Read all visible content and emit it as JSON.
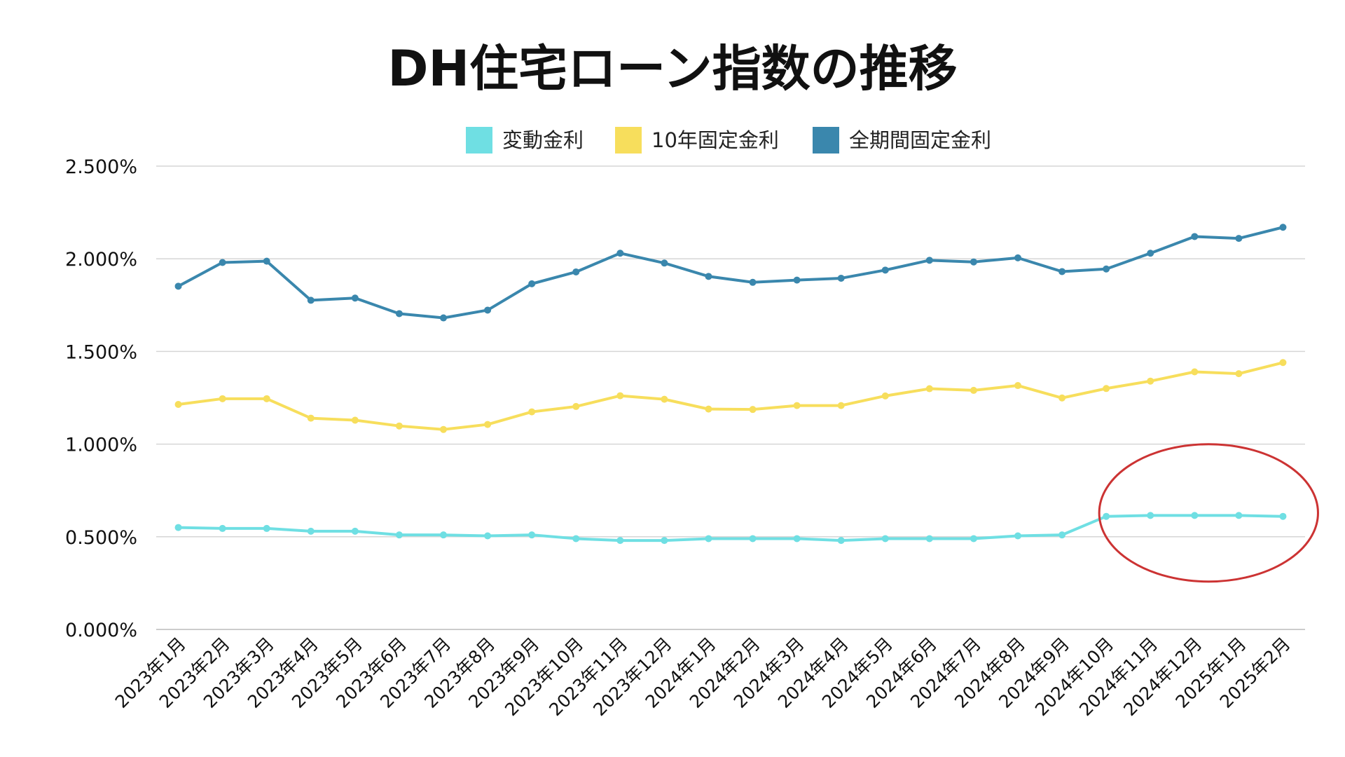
{
  "chart_data": {
    "type": "line",
    "title": "DH住宅ローン指数の推移",
    "xlabel": "",
    "ylabel": "",
    "ylim": [
      0,
      2.5
    ],
    "y_ticks": [
      "0.000%",
      "0.500%",
      "1.000%",
      "1.500%",
      "2.000%",
      "2.500%"
    ],
    "grid": true,
    "legend_position": "top",
    "categories": [
      "2023年1月",
      "2023年2月",
      "2023年3月",
      "2023年4月",
      "2023年5月",
      "2023年6月",
      "2023年7月",
      "2023年8月",
      "2023年9月",
      "2023年10月",
      "2023年11月",
      "2023年12月",
      "2024年1月",
      "2024年2月",
      "2024年3月",
      "2024年4月",
      "2024年5月",
      "2024年6月",
      "2024年7月",
      "2024年8月",
      "2024年9月",
      "2024年10月",
      "2024年11月",
      "2024年12月",
      "2025年1月",
      "2025年2月"
    ],
    "series": [
      {
        "name": "変動金利",
        "color": "#6fdfe3",
        "values": [
          0.55,
          0.545,
          0.545,
          0.53,
          0.53,
          0.51,
          0.51,
          0.505,
          0.51,
          0.49,
          0.48,
          0.48,
          0.49,
          0.49,
          0.49,
          0.48,
          0.49,
          0.49,
          0.49,
          0.505,
          0.51,
          0.61,
          0.615,
          0.615,
          0.615,
          0.61
        ]
      },
      {
        "name": "10年固定金利",
        "color": "#f7de5c",
        "values": [
          1.214,
          1.245,
          1.245,
          1.14,
          1.129,
          1.098,
          1.079,
          1.106,
          1.174,
          1.203,
          1.261,
          1.242,
          1.189,
          1.187,
          1.208,
          1.208,
          1.26,
          1.299,
          1.29,
          1.316,
          1.249,
          1.3,
          1.34,
          1.39,
          1.38,
          1.44
        ]
      },
      {
        "name": "全期間固定金利",
        "color": "#3a87ad",
        "values": [
          1.852,
          1.98,
          1.987,
          1.776,
          1.788,
          1.704,
          1.681,
          1.723,
          1.865,
          1.929,
          2.03,
          1.977,
          1.905,
          1.873,
          1.885,
          1.895,
          1.939,
          1.992,
          1.983,
          2.005,
          1.931,
          1.945,
          2.03,
          2.12,
          2.11,
          2.17
        ]
      }
    ],
    "annotations": [
      {
        "shape": "ellipse",
        "color": "#cc3333",
        "highlights": [
          "2024年10月",
          "2025年2月"
        ],
        "series": "変動金利"
      }
    ]
  }
}
